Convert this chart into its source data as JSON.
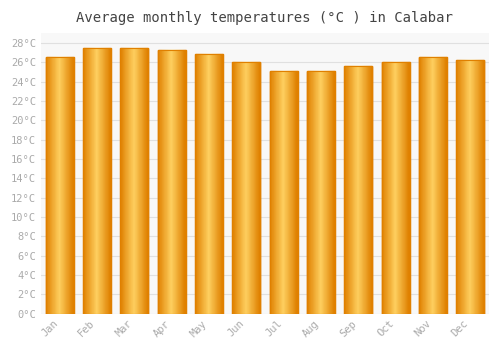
{
  "title": "Average monthly temperatures (°C ) in Calabar",
  "months": [
    "Jan",
    "Feb",
    "Mar",
    "Apr",
    "May",
    "Jun",
    "Jul",
    "Aug",
    "Sep",
    "Oct",
    "Nov",
    "Dec"
  ],
  "values": [
    26.5,
    27.5,
    27.5,
    27.3,
    26.9,
    26.0,
    25.1,
    25.1,
    25.6,
    26.0,
    26.5,
    26.2
  ],
  "bar_color_main": "#FFA500",
  "bar_color_light": "#FFD060",
  "bar_edge_color": "#E08000",
  "background_color": "#FFFFFF",
  "plot_bg_color": "#F8F8F8",
  "grid_color": "#E0E0E0",
  "tick_label_color": "#AAAAAA",
  "title_color": "#444444",
  "ylim": [
    0,
    29
  ],
  "ytick_step": 2,
  "bar_width": 0.75
}
